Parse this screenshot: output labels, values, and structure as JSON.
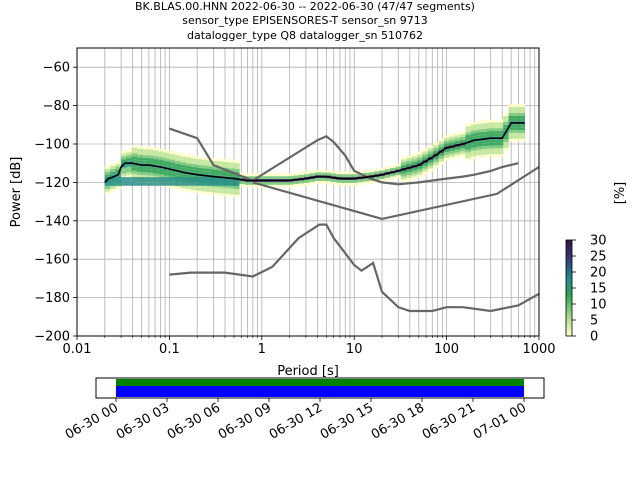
{
  "title_lines": [
    "BK.BLAS.00.HNN   2022-06-30 -- 2022-06-30  (47/47 segments)",
    "sensor_type EPISENSORES-T sensor_sn 9713",
    "datalogger_type Q8 datalogger_sn 510762"
  ],
  "chart_data": {
    "type": "heatmap",
    "xlabel": "Period [s]",
    "ylabel": "Power [dB]",
    "xscale": "log",
    "xlim": [
      0.01,
      1000
    ],
    "ylim": [
      -200,
      -50
    ],
    "x_tick_labels": [
      "0.01",
      "0.1",
      "1",
      "10",
      "100",
      "1000"
    ],
    "y_tick_labels": [
      "−60",
      "−80",
      "−100",
      "−120",
      "−140",
      "−160",
      "−180",
      "−200"
    ],
    "grid": true,
    "colorbar": {
      "label": "[%]",
      "range": [
        0,
        30
      ],
      "tick_labels": [
        "0",
        "5",
        "10",
        "15",
        "20",
        "25",
        "30"
      ],
      "colors": [
        "#ffffcc",
        "#c2e699",
        "#78c679",
        "#31a354",
        "#2a8f8a",
        "#2b5c8a",
        "#3b2a6b",
        "#2d1b45"
      ]
    },
    "mean_curve": {
      "color": "#000000",
      "points": [
        [
          0.02,
          -120
        ],
        [
          0.022,
          -118
        ],
        [
          0.025,
          -117
        ],
        [
          0.028,
          -116
        ],
        [
          0.03,
          -112
        ],
        [
          0.033,
          -110
        ],
        [
          0.04,
          -110
        ],
        [
          0.05,
          -111
        ],
        [
          0.06,
          -111
        ],
        [
          0.08,
          -112
        ],
        [
          0.1,
          -113
        ],
        [
          0.15,
          -115
        ],
        [
          0.2,
          -116
        ],
        [
          0.3,
          -117
        ],
        [
          0.5,
          -118
        ],
        [
          0.7,
          -119
        ],
        [
          1,
          -119
        ],
        [
          2,
          -119
        ],
        [
          3,
          -118
        ],
        [
          4,
          -117
        ],
        [
          5,
          -117
        ],
        [
          7,
          -118
        ],
        [
          10,
          -118
        ],
        [
          15,
          -117
        ],
        [
          20,
          -116
        ],
        [
          30,
          -114
        ],
        [
          50,
          -111
        ],
        [
          70,
          -107
        ],
        [
          100,
          -102
        ],
        [
          150,
          -100
        ],
        [
          200,
          -98
        ],
        [
          300,
          -97
        ],
        [
          400,
          -97
        ],
        [
          500,
          -89
        ],
        [
          700,
          -89
        ]
      ]
    },
    "noise_models": [
      {
        "color": "#666666",
        "points": [
          [
            0.1,
            -92
          ],
          [
            0.2,
            -97
          ],
          [
            0.3,
            -111
          ],
          [
            0.8,
            -119
          ],
          [
            4,
            -98
          ],
          [
            5,
            -96
          ],
          [
            6,
            -99
          ],
          [
            8,
            -106
          ],
          [
            10,
            -114
          ],
          [
            15,
            -118
          ],
          [
            20,
            -120
          ],
          [
            30,
            -121
          ],
          [
            50,
            -120
          ],
          [
            100,
            -118
          ],
          [
            150,
            -117
          ],
          [
            200,
            -116
          ],
          [
            300,
            -114
          ],
          [
            400,
            -112
          ],
          [
            600,
            -110
          ]
        ]
      },
      {
        "color": "#666666",
        "points": [
          [
            0.8,
            -120
          ],
          [
            20,
            -139
          ],
          [
            350,
            -126
          ],
          [
            1000,
            -112
          ]
        ]
      },
      {
        "color": "#666666",
        "points": [
          [
            0.1,
            -168
          ],
          [
            0.17,
            -167
          ],
          [
            0.4,
            -167
          ],
          [
            0.8,
            -169
          ],
          [
            1.3,
            -164
          ],
          [
            2.5,
            -149
          ],
          [
            4.2,
            -142
          ],
          [
            5,
            -142
          ],
          [
            6,
            -149
          ],
          [
            10,
            -163
          ],
          [
            12,
            -166
          ],
          [
            16,
            -162
          ],
          [
            20,
            -177
          ],
          [
            30,
            -185
          ],
          [
            40,
            -187
          ],
          [
            70,
            -187
          ],
          [
            100,
            -185
          ],
          [
            150,
            -185
          ],
          [
            300,
            -187
          ],
          [
            600,
            -184
          ],
          [
            1000,
            -178
          ]
        ]
      }
    ]
  },
  "timeline": {
    "tick_labels": [
      "06-30 00",
      "06-30 03",
      "06-30 06",
      "06-30 09",
      "06-30 12",
      "06-30 15",
      "06-30 18",
      "06-30 21",
      "07-01 00"
    ],
    "bar_colors": [
      "#008000",
      "#0000ff"
    ]
  }
}
